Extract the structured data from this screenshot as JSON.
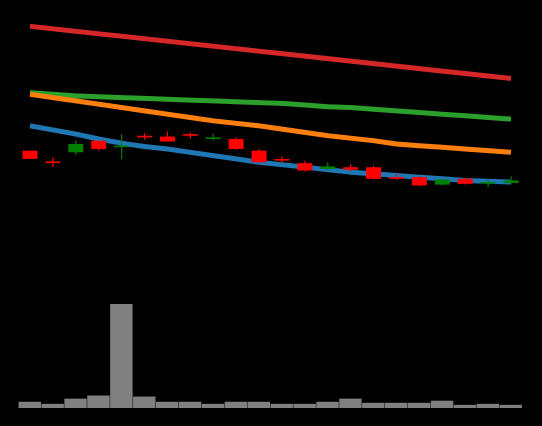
{
  "chart_data": {
    "type": "candlestick",
    "background": "#000000",
    "grid": false,
    "legend": "none",
    "x": [
      1,
      2,
      3,
      4,
      5,
      6,
      7,
      8,
      9,
      10,
      11,
      12,
      13,
      14,
      15,
      16,
      17,
      18,
      19,
      20,
      21,
      22
    ],
    "ylim": [
      4,
      35
    ],
    "candles": [
      {
        "open": 19.0,
        "close": 18.0,
        "high": 19.0,
        "low": 18.0
      },
      {
        "open": 17.7,
        "close": 17.5,
        "high": 18.2,
        "low": 17.0
      },
      {
        "open": 18.8,
        "close": 19.8,
        "high": 20.2,
        "low": 18.5
      },
      {
        "open": 20.2,
        "close": 19.2,
        "high": 20.2,
        "low": 19.0
      },
      {
        "open": 19.5,
        "close": 19.6,
        "high": 21.0,
        "low": 18.0
      },
      {
        "open": 20.8,
        "close": 20.6,
        "high": 21.1,
        "low": 20.3
      },
      {
        "open": 20.7,
        "close": 20.1,
        "high": 21.3,
        "low": 20.1
      },
      {
        "open": 21.0,
        "close": 20.8,
        "high": 21.2,
        "low": 20.4
      },
      {
        "open": 20.4,
        "close": 20.6,
        "high": 21.0,
        "low": 20.2
      },
      {
        "open": 20.4,
        "close": 19.2,
        "high": 20.6,
        "low": 19.1
      },
      {
        "open": 19.0,
        "close": 17.6,
        "high": 19.2,
        "low": 17.5
      },
      {
        "open": 18.0,
        "close": 17.8,
        "high": 18.3,
        "low": 17.5
      },
      {
        "open": 17.5,
        "close": 16.6,
        "high": 17.8,
        "low": 16.5
      },
      {
        "open": 16.8,
        "close": 17.1,
        "high": 17.6,
        "low": 16.6
      },
      {
        "open": 17.0,
        "close": 16.7,
        "high": 17.4,
        "low": 16.5
      },
      {
        "open": 17.0,
        "close": 15.6,
        "high": 17.2,
        "low": 15.5
      },
      {
        "open": 15.8,
        "close": 15.6,
        "high": 16.2,
        "low": 15.5
      },
      {
        "open": 15.8,
        "close": 14.8,
        "high": 15.9,
        "low": 14.7
      },
      {
        "open": 14.9,
        "close": 15.5,
        "high": 15.6,
        "low": 14.8
      },
      {
        "open": 15.6,
        "close": 15.0,
        "high": 15.7,
        "low": 14.9
      },
      {
        "open": 15.1,
        "close": 15.2,
        "high": 15.5,
        "low": 14.6
      },
      {
        "open": 15.1,
        "close": 15.4,
        "high": 15.9,
        "low": 15.0
      }
    ],
    "up_color": "#008000",
    "down_color": "#ff0000",
    "series": [
      {
        "color": "#d62728",
        "values": [
          34.0,
          33.7,
          33.4,
          33.1,
          32.8,
          32.5,
          32.2,
          31.9,
          31.6,
          31.3,
          31.0,
          30.7,
          30.4,
          30.1,
          29.8,
          29.5,
          29.2,
          28.9,
          28.6,
          28.3,
          28.0,
          27.7
        ]
      },
      {
        "color": "#2ca02c",
        "values": [
          26.0,
          25.8,
          25.6,
          25.5,
          25.4,
          25.3,
          25.2,
          25.1,
          25.0,
          24.9,
          24.8,
          24.7,
          24.5,
          24.3,
          24.2,
          24.0,
          23.8,
          23.6,
          23.4,
          23.2,
          23.0,
          22.8
        ]
      },
      {
        "color": "#ff7f0e",
        "values": [
          25.8,
          25.4,
          25.0,
          24.6,
          24.2,
          23.8,
          23.4,
          23.0,
          22.6,
          22.3,
          22.0,
          21.6,
          21.2,
          20.8,
          20.5,
          20.2,
          19.8,
          19.6,
          19.4,
          19.2,
          19.0,
          18.8
        ]
      },
      {
        "color": "#1f77b4",
        "values": [
          22.0,
          21.5,
          21.0,
          20.4,
          19.9,
          19.5,
          19.2,
          18.8,
          18.4,
          18.0,
          17.6,
          17.3,
          17.0,
          16.7,
          16.4,
          16.2,
          16.0,
          15.8,
          15.6,
          15.4,
          15.3,
          15.2
        ]
      }
    ],
    "volume": {
      "color": "#808080",
      "ylim": [
        0,
        100
      ],
      "values": [
        6,
        4,
        9,
        12,
        100,
        11,
        6,
        6,
        4,
        6,
        6,
        4,
        4,
        6,
        9,
        5,
        5,
        5,
        7,
        3,
        4,
        3
      ]
    }
  }
}
